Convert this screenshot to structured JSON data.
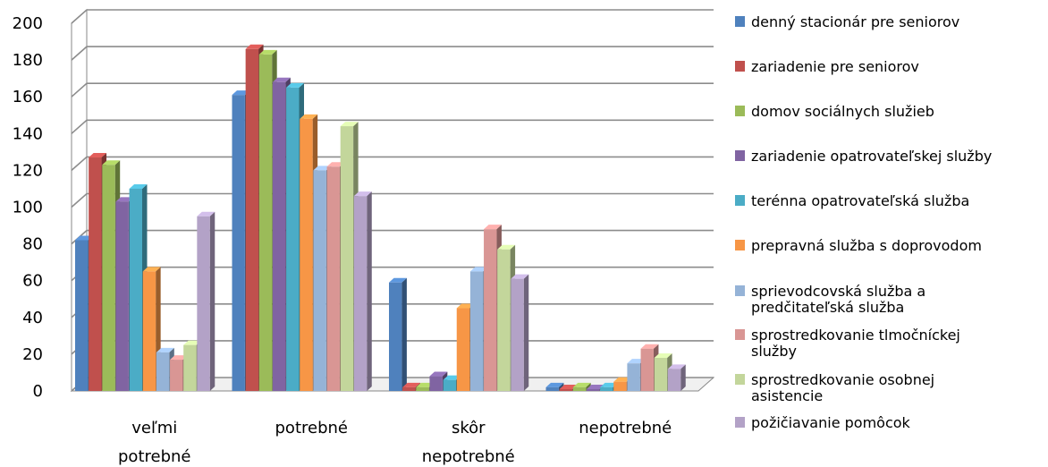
{
  "chart_data": {
    "type": "bar",
    "style": "3d-clustered",
    "categories": [
      [
        "veľmi",
        "potrebné"
      ],
      [
        "potrebné"
      ],
      [
        "skôr",
        "nepotrebné"
      ],
      [
        "nepotrebné"
      ]
    ],
    "ylim": [
      0,
      200
    ],
    "yticks": [
      "0",
      "20",
      "40",
      "60",
      "80",
      "100",
      "120",
      "140",
      "160",
      "180",
      "200"
    ],
    "grid": true,
    "legend_position": "right",
    "series": [
      {
        "name": [
          "denný stacionár pre seniorov"
        ],
        "color": "#4F81BD",
        "values": [
          82,
          161,
          59,
          2
        ]
      },
      {
        "name": [
          "zariadenie pre seniorov"
        ],
        "color": "#C0504D",
        "values": [
          127,
          186,
          2,
          1
        ]
      },
      {
        "name": [
          "domov sociálnych služieb"
        ],
        "color": "#9BBB59",
        "values": [
          123,
          183,
          2,
          2
        ]
      },
      {
        "name": [
          "zariadenie opatrovateľskej služby"
        ],
        "color": "#8064A2",
        "values": [
          103,
          168,
          8,
          1
        ]
      },
      {
        "name": [
          "terénna opatrovateľská služba"
        ],
        "color": "#4BACC6",
        "values": [
          110,
          165,
          6,
          2
        ]
      },
      {
        "name": [
          "prepravná služba s doprovodom"
        ],
        "color": "#F79646",
        "values": [
          65,
          148,
          45,
          5
        ]
      },
      {
        "name": [
          "sprievodcovská služba a",
          "predčitateľská služba"
        ],
        "color": "#95B3D7",
        "values": [
          21,
          120,
          65,
          15
        ]
      },
      {
        "name": [
          "sprostredkovanie tlmočníckej",
          "služby"
        ],
        "color": "#D99694",
        "values": [
          17,
          122,
          88,
          23
        ]
      },
      {
        "name": [
          "sprostredkovanie osobnej",
          "asistencie"
        ],
        "color": "#C3D69B",
        "values": [
          25,
          144,
          77,
          18
        ]
      },
      {
        "name": [
          "požičiavanie pomôcok"
        ],
        "color": "#B3A2C7",
        "values": [
          95,
          106,
          61,
          12
        ]
      }
    ]
  }
}
